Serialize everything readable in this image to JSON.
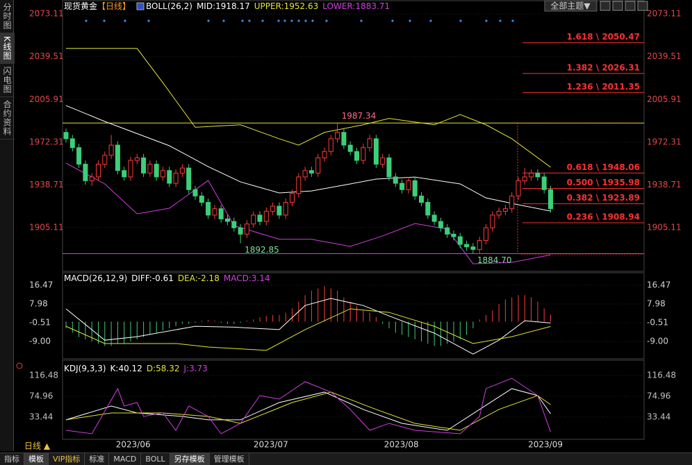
{
  "chart_data": [
    {
      "type": "candlestick",
      "title": "现货黄金",
      "period": "【日线】",
      "indicator": "BOLL(26,2)",
      "candles": [
        [
          1980,
          1983,
          1972,
          1975
        ],
        [
          1975,
          1978,
          1965,
          1968
        ],
        [
          1968,
          1971,
          1952,
          1955
        ],
        [
          1955,
          1958,
          1939,
          1942
        ],
        [
          1942,
          1948,
          1938,
          1945
        ],
        [
          1945,
          1958,
          1942,
          1955
        ],
        [
          1955,
          1965,
          1952,
          1962
        ],
        [
          1962,
          1978,
          1959,
          1970
        ],
        [
          1970,
          1973,
          1947,
          1950
        ],
        [
          1950,
          1953,
          1942,
          1945
        ],
        [
          1945,
          1961,
          1942,
          1958
        ],
        [
          1958,
          1963,
          1955,
          1960
        ],
        [
          1960,
          1963,
          1945,
          1948
        ],
        [
          1948,
          1958,
          1945,
          1955
        ],
        [
          1955,
          1958,
          1942,
          1945
        ],
        [
          1945,
          1953,
          1942,
          1950
        ],
        [
          1950,
          1953,
          1937,
          1940
        ],
        [
          1940,
          1951,
          1937,
          1948
        ],
        [
          1948,
          1955,
          1945,
          1952
        ],
        [
          1952,
          1955,
          1932,
          1935
        ],
        [
          1935,
          1938,
          1927,
          1930
        ],
        [
          1930,
          1933,
          1922,
          1925
        ],
        [
          1925,
          1928,
          1912,
          1915
        ],
        [
          1915,
          1923,
          1912,
          1920
        ],
        [
          1920,
          1923,
          1909,
          1912
        ],
        [
          1912,
          1915,
          1907,
          1910
        ],
        [
          1910,
          1913,
          1902,
          1905
        ],
        [
          1905,
          1908,
          1892.85,
          1900
        ],
        [
          1900,
          1911,
          1897,
          1908
        ],
        [
          1908,
          1918,
          1905,
          1915
        ],
        [
          1915,
          1918,
          1907,
          1910
        ],
        [
          1910,
          1921,
          1907,
          1918
        ],
        [
          1918,
          1925,
          1915,
          1922
        ],
        [
          1922,
          1925,
          1912,
          1915
        ],
        [
          1915,
          1928,
          1912,
          1925
        ],
        [
          1925,
          1935,
          1922,
          1932
        ],
        [
          1932,
          1948,
          1929,
          1945
        ],
        [
          1945,
          1953,
          1942,
          1950
        ],
        [
          1950,
          1953,
          1945,
          1948
        ],
        [
          1948,
          1963,
          1945,
          1960
        ],
        [
          1960,
          1968,
          1957,
          1965
        ],
        [
          1965,
          1978,
          1962,
          1975
        ],
        [
          1975,
          1987.34,
          1972,
          1980
        ],
        [
          1980,
          1983,
          1967,
          1970
        ],
        [
          1970,
          1973,
          1962,
          1965
        ],
        [
          1965,
          1968,
          1955,
          1958
        ],
        [
          1958,
          1971,
          1955,
          1968
        ],
        [
          1968,
          1978,
          1965,
          1975
        ],
        [
          1975,
          1978,
          1952,
          1955
        ],
        [
          1955,
          1963,
          1952,
          1960
        ],
        [
          1960,
          1963,
          1942,
          1945
        ],
        [
          1945,
          1948,
          1937,
          1940
        ],
        [
          1940,
          1943,
          1932,
          1935
        ],
        [
          1935,
          1945,
          1932,
          1942
        ],
        [
          1942,
          1945,
          1927,
          1930
        ],
        [
          1930,
          1933,
          1922,
          1925
        ],
        [
          1925,
          1928,
          1912,
          1915
        ],
        [
          1915,
          1918,
          1907,
          1910
        ],
        [
          1910,
          1913,
          1902,
          1905
        ],
        [
          1905,
          1908,
          1897,
          1900
        ],
        [
          1900,
          1903,
          1895,
          1898
        ],
        [
          1898,
          1901,
          1889,
          1892
        ],
        [
          1892,
          1895,
          1887,
          1890
        ],
        [
          1890,
          1893,
          1884.7,
          1888
        ],
        [
          1888,
          1898,
          1885,
          1895
        ],
        [
          1895,
          1908,
          1892,
          1905
        ],
        [
          1905,
          1918,
          1902,
          1915
        ],
        [
          1915,
          1921,
          1912,
          1918
        ],
        [
          1918,
          1923,
          1915,
          1920
        ],
        [
          1920,
          1933,
          1917,
          1930
        ],
        [
          1930,
          1945,
          1927,
          1942
        ],
        [
          1942,
          1952,
          1939,
          1945
        ],
        [
          1945,
          1951,
          1942,
          1948
        ],
        [
          1948,
          1951,
          1942,
          1945
        ],
        [
          1945,
          1948,
          1932,
          1935
        ],
        [
          1935,
          1938,
          1917,
          1920
        ]
      ],
      "up_color": "#ff3c3c",
      "down_color": "#3ccf7a",
      "series": [
        {
          "name": "MID:",
          "color": "#ffffff",
          "x": [
            0,
            6,
            16,
            22,
            27,
            33,
            38,
            44,
            48,
            54,
            61,
            65,
            70,
            75
          ],
          "values": [
            2001.1,
            1988.6,
            1969.5,
            1953.1,
            1941.1,
            1932.4,
            1934,
            1939.5,
            1943.3,
            1944.9,
            1939.5,
            1928.5,
            1923.1,
            1918.17
          ]
        },
        {
          "name": "UPPER:",
          "color": "#e6e632",
          "x": [
            0,
            11,
            15,
            20,
            27,
            33,
            36,
            40,
            46,
            50,
            57,
            61,
            65,
            69,
            75
          ],
          "values": [
            2046,
            2046,
            2019,
            1984,
            1986,
            1975,
            1970,
            1980,
            1986,
            1991,
            1986,
            1994,
            1986,
            1975,
            1952.63
          ]
        },
        {
          "name": "LOWER:",
          "color": "#d040e0",
          "x": [
            0,
            6,
            11,
            16,
            22,
            26,
            33,
            38,
            44,
            49,
            54,
            59,
            63,
            69,
            75
          ],
          "values": [
            1955.8,
            1939.5,
            1916,
            1920.4,
            1942.2,
            1906.8,
            1896,
            1896,
            1890.4,
            1898.6,
            1908.4,
            1904,
            1876.7,
            1877.8,
            1883.71
          ]
        }
      ],
      "ylim": [
        1871.3,
        2079.7
      ],
      "yticks": [
        2073.11,
        2039.51,
        2005.91,
        1972.31,
        1938.71,
        1905.11
      ],
      "xticks": [
        {
          "value": 10.4,
          "label": "2023/06"
        },
        {
          "value": 31.7,
          "label": "2023/07"
        },
        {
          "value": 51.9,
          "label": "2023/08"
        },
        {
          "value": 74.2,
          "label": "2023/09"
        }
      ],
      "annotations": [
        {
          "value": 1987.34,
          "label": "1987.34"
        },
        {
          "value": 1892.85,
          "label": "1892.85"
        },
        {
          "value": 1884.7,
          "label": "1884.70"
        }
      ],
      "fib_levels": [
        {
          "value": 2050.47,
          "label": "1.618 \\ 2050.47"
        },
        {
          "value": 2026.31,
          "label": "1.382 \\ 2026.31"
        },
        {
          "value": 2011.35,
          "label": "1.236 \\ 2011.35"
        },
        {
          "value": 1948.06,
          "label": "0.618 \\ 1948.06"
        },
        {
          "value": 1935.98,
          "label": "0.500 \\ 1935.98"
        },
        {
          "value": 1923.89,
          "label": "0.382 \\ 1923.89"
        },
        {
          "value": 1908.94,
          "label": "0.236 \\ 1908.94"
        }
      ],
      "fib_color": "#ff3030"
    },
    {
      "type": "macd",
      "title": "MACD(26,12,9)",
      "series": [
        {
          "name": "DIFF:",
          "color": "#ffffff",
          "x": [
            0,
            6,
            11,
            20,
            26,
            33,
            37,
            41,
            46,
            50,
            57,
            63,
            67,
            71,
            75
          ],
          "values": [
            5.8,
            -8.4,
            -6.8,
            -2.1,
            -2.5,
            -3.6,
            7.3,
            10.5,
            7.3,
            2.6,
            -5.2,
            -14.7,
            -8.4,
            0.4,
            -0.61
          ]
        },
        {
          "name": "DEA:",
          "color": "#e6e632",
          "x": [
            0,
            6,
            17,
            22,
            31,
            37,
            44,
            50,
            57,
            63,
            69,
            75
          ],
          "values": [
            -2.1,
            -9.9,
            -9.9,
            -11.5,
            -13,
            -3.6,
            5.8,
            4.2,
            -2.1,
            -9.9,
            -6.8,
            -2.18
          ]
        }
      ],
      "histogram": {
        "name": "MACD:",
        "color": "#d040e0",
        "values": [
          -3,
          -5,
          -7,
          -8,
          -9,
          -10,
          -11,
          -11,
          -10,
          -10,
          -9,
          -8,
          -7,
          -6,
          -5,
          -4,
          -3,
          -2,
          -1,
          -1,
          -0.5,
          0.5,
          0.8,
          0.5,
          -0.5,
          -1,
          -1,
          -0.5,
          0.5,
          1,
          2,
          2.5,
          3,
          3,
          4,
          6,
          9,
          12,
          14,
          15,
          16,
          15,
          14,
          11,
          9,
          7,
          5,
          4,
          2,
          -1,
          -3,
          -5,
          -6,
          -7,
          -8,
          -9,
          -10,
          -11,
          -11,
          -10,
          -9,
          -8,
          -6,
          -3,
          1,
          3,
          5,
          8,
          10,
          11,
          12,
          12,
          11,
          9,
          6,
          3.14
        ]
      },
      "up_color": "#ff3c3c",
      "down_color": "#3ccf7a",
      "ylim": [
        -16.2,
        21.5
      ],
      "yticks": [
        16.47,
        7.98,
        -0.51,
        {
          "value": -9,
          "label": "-9.00"
        }
      ]
    },
    {
      "type": "kdj",
      "title": "KDJ(9,3,3)",
      "series": [
        {
          "name": "K:",
          "color": "#ffffff",
          "x": [
            0,
            7,
            11,
            18,
            22,
            27,
            33,
            40,
            46,
            52,
            59,
            64,
            69,
            73,
            75
          ],
          "values": [
            28,
            55.6,
            41.7,
            34.8,
            28,
            28,
            62.5,
            83.3,
            48.7,
            21,
            7.1,
            48.7,
            90.2,
            76.3,
            40.12
          ]
        },
        {
          "name": "D:",
          "color": "#e6e632",
          "x": [
            0,
            7,
            15,
            22,
            27,
            35,
            41,
            48,
            54,
            61,
            67,
            73,
            75
          ],
          "values": [
            28,
            41.7,
            41.7,
            34.8,
            21,
            62.5,
            83.3,
            48.7,
            21,
            7.1,
            48.7,
            76.3,
            58.32
          ]
        },
        {
          "name": "J:",
          "color": "#d040e0",
          "x": [
            0,
            4,
            8,
            9,
            11,
            12,
            15,
            17,
            19,
            22,
            24,
            27,
            30,
            33,
            37,
            41,
            44,
            47,
            50,
            54,
            61,
            64,
            65,
            69,
            73,
            75
          ],
          "values": [
            7.1,
            0.2,
            90.2,
            55.6,
            62.5,
            34.8,
            41.7,
            7.1,
            55.6,
            34.8,
            0.2,
            21,
            76.3,
            69.4,
            104,
            83.3,
            48.7,
            7.1,
            21,
            7.1,
            0.2,
            34.8,
            90.2,
            110.9,
            76.3,
            3.73
          ]
        }
      ],
      "ylim": [
        -9.5,
        138.6
      ],
      "yticks": [
        116.48,
        74.96,
        33.44
      ]
    }
  ],
  "ui": {
    "sidebar": [
      "分时图",
      "K线图",
      "闪电图",
      "合约资料"
    ],
    "theme_button": "全部主题▼",
    "timeframe": "日线 ▲",
    "tabs": [
      "指标",
      "模板",
      "VIP指标",
      "标准",
      "MACD",
      "BOLL",
      "另存模板",
      "管理模板"
    ]
  }
}
